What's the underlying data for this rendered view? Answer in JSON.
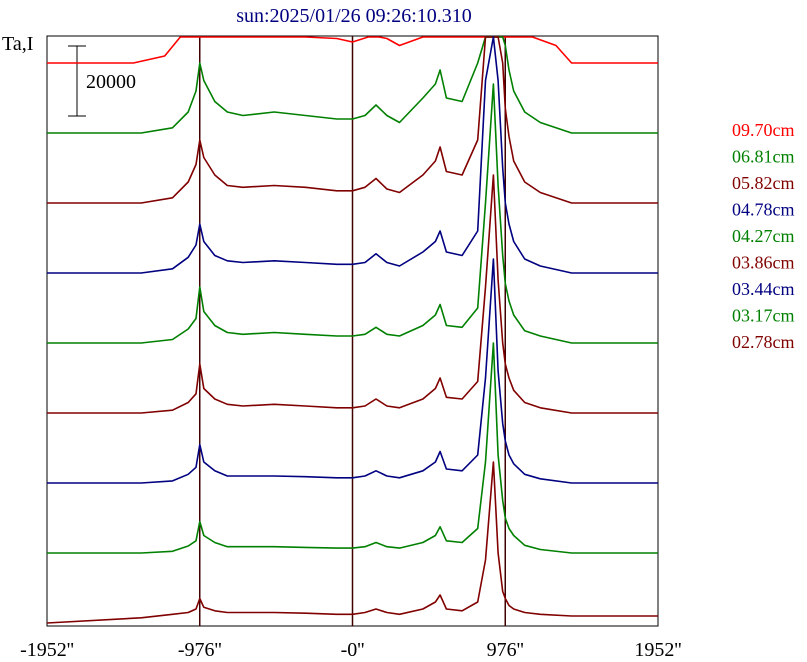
{
  "chart_data": {
    "type": "line",
    "title": "sun:2025/01/26 09:26:10.310",
    "ylabel": "Ta,I",
    "scale_bar_label": "20000",
    "scale_bar_value": 20000,
    "x_unit": "arcsec",
    "xlim": [
      -1952,
      1952
    ],
    "x_ticks": [
      -1952,
      -976,
      0,
      976,
      1952
    ],
    "x_tick_labels": [
      "-1952''",
      "-976''",
      "-0''",
      "976''",
      "1952''"
    ],
    "vertical_reference_lines": [
      -976,
      0,
      976
    ],
    "grid": false,
    "legend_position": "right",
    "series": [
      {
        "name": "09.70cm",
        "color": "#ff0000",
        "offset": 120000,
        "x": [
          -1952,
          -1400,
          -1200,
          -1100,
          -1040,
          -1000,
          -976,
          -950,
          -900,
          -850,
          -800,
          -700,
          -500,
          -300,
          -100,
          0,
          100,
          170,
          220,
          300,
          450,
          500,
          580,
          650,
          720,
          780,
          850,
          900,
          930,
          960,
          976,
          1000,
          1020,
          1060,
          1150,
          1300,
          1400,
          1952
        ],
        "y": [
          0,
          0,
          2000,
          8000,
          16000,
          25000,
          36000,
          25000,
          14000,
          10000,
          8000,
          9000,
          11000,
          8000,
          7000,
          6000,
          8000,
          13000,
          7000,
          5000,
          16000,
          23000,
          28000,
          17000,
          16000,
          40000,
          112000,
          134000,
          122000,
          78000,
          55000,
          42000,
          34000,
          22000,
          10000,
          5000,
          0,
          0
        ]
      },
      {
        "name": "06.81cm",
        "color": "#008000",
        "offset": 100000,
        "x": [
          -1952,
          -1350,
          -1150,
          -1050,
          -1000,
          -976,
          -950,
          -880,
          -800,
          -700,
          -500,
          -300,
          -100,
          0,
          80,
          150,
          220,
          300,
          450,
          530,
          560,
          600,
          700,
          800,
          850,
          900,
          930,
          960,
          976,
          1000,
          1030,
          1100,
          1200,
          1400,
          1952
        ],
        "y": [
          0,
          0,
          1500,
          6000,
          12000,
          20000,
          15000,
          9000,
          6000,
          5000,
          6000,
          5000,
          4000,
          4000,
          5000,
          8000,
          5000,
          3000,
          10000,
          14000,
          18000,
          10000,
          9000,
          20000,
          60000,
          80000,
          60000,
          35000,
          25000,
          18000,
          12000,
          6000,
          3000,
          0,
          0
        ]
      },
      {
        "name": "05.82cm",
        "color": "#800000",
        "offset": 80000,
        "x": [
          -1952,
          -1350,
          -1150,
          -1050,
          -1000,
          -976,
          -950,
          -880,
          -800,
          -700,
          -500,
          -300,
          -100,
          0,
          80,
          150,
          220,
          300,
          450,
          530,
          560,
          600,
          700,
          800,
          850,
          900,
          930,
          960,
          976,
          1000,
          1030,
          1100,
          1200,
          1400,
          1952
        ],
        "y": [
          0,
          0,
          1500,
          6000,
          11000,
          18000,
          13000,
          8000,
          5000,
          4500,
          5000,
          4500,
          3500,
          3500,
          4500,
          7000,
          4000,
          3000,
          8000,
          12000,
          16000,
          9000,
          8000,
          18000,
          70000,
          96000,
          70000,
          40000,
          27000,
          19000,
          12000,
          6000,
          3000,
          0,
          0
        ]
      },
      {
        "name": "04.78cm",
        "color": "#000080",
        "offset": 60000,
        "x": [
          -1952,
          -1350,
          -1150,
          -1050,
          -1000,
          -976,
          -950,
          -880,
          -800,
          -700,
          -500,
          -300,
          -100,
          0,
          80,
          150,
          220,
          300,
          450,
          530,
          560,
          600,
          700,
          800,
          850,
          900,
          930,
          960,
          976,
          1000,
          1030,
          1100,
          1200,
          1400,
          1952
        ],
        "y": [
          0,
          0,
          1200,
          4500,
          8000,
          14000,
          9000,
          5000,
          3500,
          3000,
          3500,
          3000,
          2500,
          2500,
          3000,
          5500,
          3000,
          2000,
          6000,
          9000,
          12000,
          6000,
          5000,
          12000,
          55000,
          82000,
          55000,
          30000,
          20000,
          14000,
          9000,
          4000,
          2000,
          0,
          0
        ]
      },
      {
        "name": "04.27cm",
        "color": "#008000",
        "offset": 40000,
        "x": [
          -1952,
          -1350,
          -1150,
          -1050,
          -1000,
          -976,
          -950,
          -880,
          -800,
          -700,
          -500,
          -300,
          -100,
          0,
          80,
          150,
          220,
          300,
          450,
          530,
          560,
          600,
          700,
          800,
          850,
          900,
          930,
          960,
          976,
          1000,
          1030,
          1100,
          1200,
          1400,
          1952
        ],
        "y": [
          0,
          0,
          1000,
          4000,
          7000,
          16000,
          9000,
          5000,
          3000,
          2500,
          3000,
          2500,
          2000,
          2000,
          2500,
          4500,
          2500,
          2000,
          5000,
          8000,
          11000,
          5000,
          4500,
          10000,
          40000,
          74000,
          45000,
          25000,
          17000,
          12000,
          8000,
          3500,
          2000,
          0,
          0
        ]
      },
      {
        "name": "03.86cm",
        "color": "#800000",
        "offset": 20000,
        "x": [
          -1952,
          -1350,
          -1150,
          -1050,
          -1000,
          -976,
          -950,
          -880,
          -800,
          -700,
          -500,
          -300,
          -100,
          0,
          80,
          150,
          220,
          300,
          450,
          530,
          560,
          600,
          700,
          800,
          850,
          900,
          930,
          960,
          976,
          1000,
          1030,
          1100,
          1200,
          1400,
          1952
        ],
        "y": [
          0,
          0,
          800,
          3000,
          5500,
          14000,
          7000,
          4000,
          2500,
          2000,
          2500,
          2000,
          1500,
          1500,
          2000,
          4000,
          2000,
          1500,
          4000,
          7000,
          10000,
          4500,
          4000,
          9000,
          36000,
          68000,
          38000,
          20000,
          14000,
          10000,
          6500,
          3000,
          1500,
          0,
          0
        ]
      },
      {
        "name": "03.44cm",
        "color": "#000080",
        "offset": 0,
        "x": [
          -1952,
          -1350,
          -1150,
          -1050,
          -1000,
          -976,
          -950,
          -880,
          -800,
          -700,
          -500,
          -300,
          -100,
          0,
          80,
          150,
          220,
          300,
          450,
          530,
          560,
          600,
          700,
          800,
          850,
          900,
          930,
          960,
          976,
          1000,
          1030,
          1100,
          1200,
          1400,
          1952
        ],
        "y": [
          0,
          0,
          600,
          2500,
          4500,
          11000,
          6000,
          3500,
          2000,
          2000,
          2000,
          1800,
          1500,
          1500,
          2000,
          3500,
          2000,
          1500,
          3500,
          6000,
          9000,
          4000,
          3500,
          8000,
          30000,
          64000,
          32000,
          17000,
          12000,
          8000,
          5500,
          2500,
          1200,
          0,
          0
        ]
      },
      {
        "name": "03.17cm",
        "color": "#008000",
        "offset": -20000,
        "x": [
          -1952,
          -1350,
          -1150,
          -1050,
          -1000,
          -976,
          -950,
          -880,
          -800,
          -700,
          -500,
          -300,
          -100,
          0,
          80,
          150,
          220,
          300,
          450,
          530,
          560,
          600,
          700,
          800,
          850,
          900,
          930,
          960,
          976,
          1000,
          1030,
          1100,
          1200,
          1400,
          1952
        ],
        "y": [
          0,
          0,
          500,
          2000,
          3500,
          9000,
          5000,
          3000,
          1800,
          1800,
          1800,
          1600,
          1400,
          1400,
          1800,
          3000,
          1800,
          1400,
          3000,
          5000,
          7500,
          3500,
          3000,
          7000,
          26000,
          60000,
          28000,
          15000,
          10000,
          7000,
          5000,
          2200,
          1000,
          0,
          0
        ]
      },
      {
        "name": "02.78cm",
        "color": "#800000",
        "offset": -40000,
        "x": [
          -1952,
          -1350,
          -1150,
          -1050,
          -1000,
          -976,
          -950,
          -880,
          -800,
          -700,
          -500,
          -300,
          -100,
          0,
          80,
          150,
          220,
          300,
          450,
          530,
          560,
          600,
          700,
          800,
          850,
          900,
          930,
          960,
          976,
          1000,
          1030,
          1100,
          1200,
          1400,
          1952
        ],
        "y": [
          0,
          1500,
          2500,
          3000,
          4000,
          7000,
          4500,
          3500,
          3000,
          3000,
          3000,
          2800,
          2500,
          2500,
          3000,
          4000,
          3000,
          2500,
          4000,
          6000,
          8000,
          4000,
          3500,
          6000,
          18000,
          46000,
          20000,
          9000,
          7000,
          5000,
          4000,
          3000,
          2500,
          2000,
          2000
        ]
      }
    ]
  }
}
